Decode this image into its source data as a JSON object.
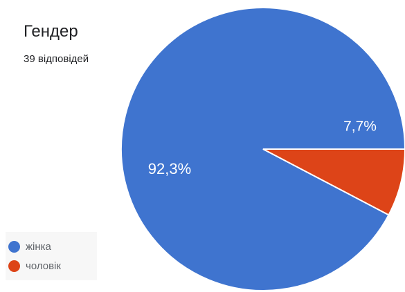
{
  "header": {
    "title": "Гендер",
    "subtitle": "39 відповідей"
  },
  "chart_data": {
    "type": "pie",
    "title": "Гендер",
    "subtitle": "39 відповідей",
    "categories": [
      "жінка",
      "чоловік"
    ],
    "values": [
      92.3,
      7.7
    ],
    "value_labels": [
      "92,3%",
      "7,7%"
    ],
    "colors": [
      "#3f74cf",
      "#dd4418"
    ],
    "legend_position": "bottom-left",
    "start_angle_degrees": 0,
    "direction": "counterclockwise"
  },
  "legend": {
    "items": [
      {
        "label": "жінка",
        "color": "#3f74cf"
      },
      {
        "label": "чоловік",
        "color": "#dd4418"
      }
    ]
  }
}
